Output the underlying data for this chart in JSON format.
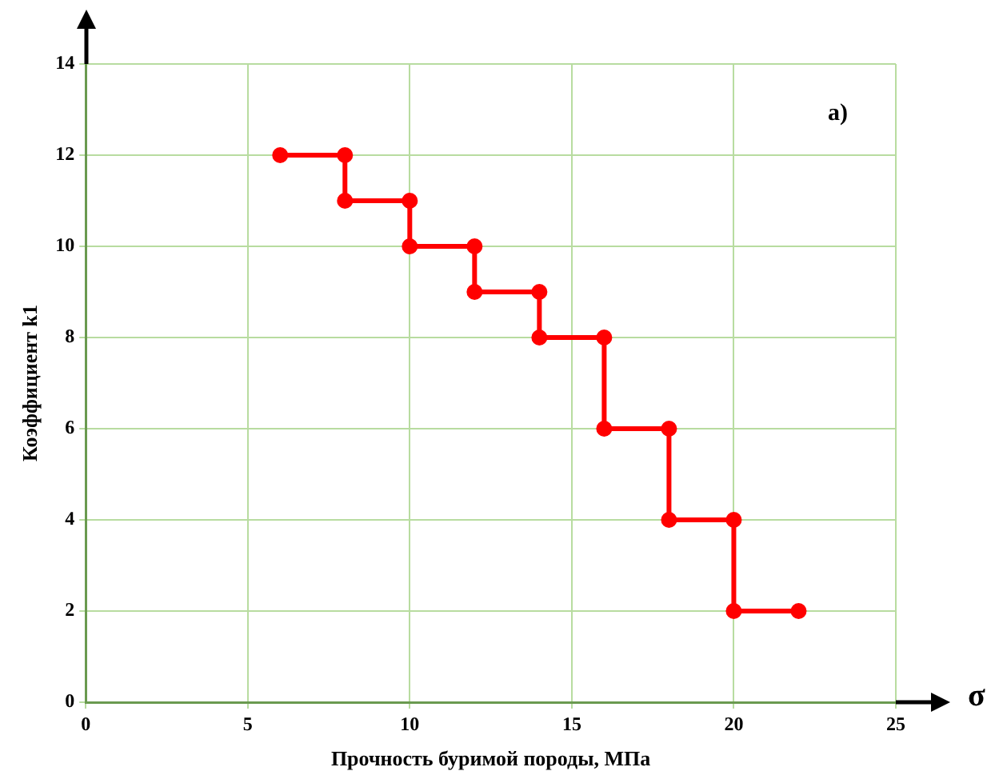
{
  "chart_data": {
    "type": "line",
    "xlabel": "Прочность буримой породы, МПа",
    "ylabel": "Коэффициент k1",
    "annotations": [
      "а)",
      "σ"
    ],
    "x": [
      6,
      8,
      8,
      10,
      10,
      12,
      12,
      14,
      14,
      16,
      16,
      18,
      18,
      20,
      20,
      22
    ],
    "series": [
      {
        "color": "#ff0000",
        "values": [
          12,
          12,
          11,
          11,
          10,
          10,
          9,
          9,
          8,
          8,
          6,
          6,
          4,
          4,
          2,
          2
        ]
      }
    ],
    "xlim": [
      0,
      25
    ],
    "xticks": [
      0,
      5,
      10,
      15,
      20,
      25
    ],
    "ylim": [
      0,
      14
    ],
    "yticks": [
      0,
      2,
      4,
      6,
      8,
      10,
      12,
      14
    ],
    "grid": true,
    "legend": false,
    "marker": "circle",
    "line_style": "solid"
  }
}
